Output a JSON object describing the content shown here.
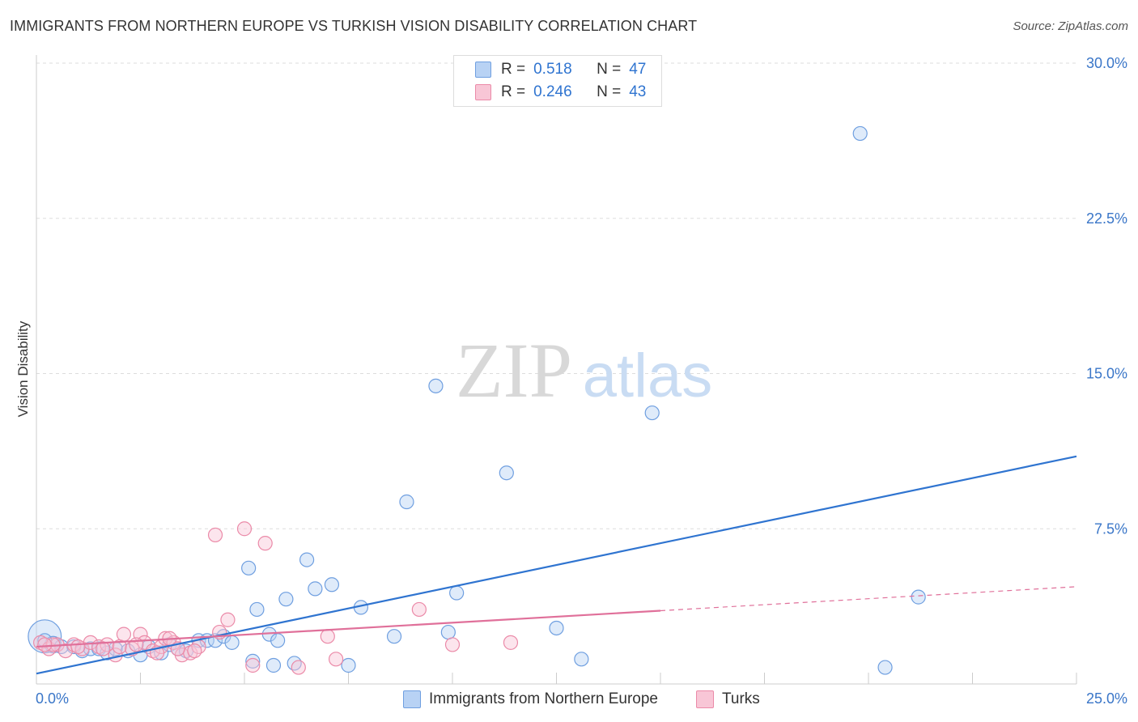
{
  "title": "IMMIGRANTS FROM NORTHERN EUROPE VS TURKISH VISION DISABILITY CORRELATION CHART",
  "source": "Source: ZipAtlas.com",
  "watermark": {
    "zip": "ZIP",
    "atlas": "atlas"
  },
  "legend": {
    "r_label": "R =",
    "n_label": "N =",
    "series": [
      {
        "r": "0.518",
        "n": "47"
      },
      {
        "r": "0.246",
        "n": "43"
      }
    ]
  },
  "chart_data": {
    "type": "scatter",
    "ylabel": "Vision Disability",
    "xlabel": "",
    "xlim": [
      0,
      25
    ],
    "ylim": [
      0,
      30
    ],
    "x_tick_labels": [
      {
        "value": 0,
        "label": "0.0%"
      },
      {
        "value": 25,
        "label": "25.0%"
      }
    ],
    "y_tick_labels": [
      {
        "value": 7.5,
        "label": "7.5%"
      },
      {
        "value": 15,
        "label": "15.0%"
      },
      {
        "value": 22.5,
        "label": "22.5%"
      },
      {
        "value": 30,
        "label": "30.0%"
      }
    ],
    "series": [
      {
        "name": "Immigrants from Northern Europe",
        "color": "#6f9fe0",
        "fill": "#b8d2f4",
        "line_color": "#2f74d0",
        "trend": {
          "x0": 0,
          "y0": 0.5,
          "x1": 25,
          "y1": 11.0,
          "dashed_from": null
        },
        "points": [
          [
            0.2,
            2.3
          ],
          [
            0.4,
            1.9
          ],
          [
            0.6,
            1.8
          ],
          [
            0.9,
            1.8
          ],
          [
            1.1,
            1.6
          ],
          [
            1.3,
            1.7
          ],
          [
            1.5,
            1.7
          ],
          [
            1.7,
            1.5
          ],
          [
            1.9,
            1.7
          ],
          [
            2.2,
            1.6
          ],
          [
            2.5,
            1.4
          ],
          [
            2.7,
            1.8
          ],
          [
            3.0,
            1.5
          ],
          [
            3.2,
            1.9
          ],
          [
            3.4,
            1.7
          ],
          [
            3.6,
            1.6
          ],
          [
            3.9,
            2.1
          ],
          [
            4.1,
            2.1
          ],
          [
            4.3,
            2.1
          ],
          [
            4.5,
            2.3
          ],
          [
            4.7,
            2.0
          ],
          [
            5.1,
            5.6
          ],
          [
            5.2,
            1.1
          ],
          [
            5.3,
            3.6
          ],
          [
            5.6,
            2.4
          ],
          [
            5.7,
            0.9
          ],
          [
            5.8,
            2.1
          ],
          [
            6.0,
            4.1
          ],
          [
            6.2,
            1.0
          ],
          [
            6.5,
            6.0
          ],
          [
            6.7,
            4.6
          ],
          [
            7.1,
            4.8
          ],
          [
            7.5,
            0.9
          ],
          [
            7.8,
            3.7
          ],
          [
            8.6,
            2.3
          ],
          [
            8.9,
            8.8
          ],
          [
            9.6,
            14.4
          ],
          [
            9.9,
            2.5
          ],
          [
            10.1,
            4.4
          ],
          [
            11.3,
            10.2
          ],
          [
            12.5,
            2.7
          ],
          [
            13.1,
            1.2
          ],
          [
            14.8,
            13.1
          ],
          [
            19.8,
            26.6
          ],
          [
            20.4,
            0.8
          ],
          [
            21.2,
            4.2
          ],
          [
            0.2,
            2.1
          ]
        ],
        "point_sizes": [
          24,
          12,
          10,
          10,
          10,
          10,
          10,
          10,
          10,
          10,
          10,
          10,
          10,
          10,
          10,
          10,
          10,
          10,
          10,
          10,
          10,
          10,
          10,
          10,
          10,
          10,
          10,
          10,
          10,
          10,
          10,
          10,
          10,
          10,
          10,
          10,
          10,
          10,
          10,
          10,
          10,
          10,
          10,
          10,
          10,
          10,
          10
        ]
      },
      {
        "name": "Turks",
        "color": "#eb8aa8",
        "fill": "#f8c6d6",
        "line_color": "#e0709a",
        "trend": {
          "x0": 0,
          "y0": 1.8,
          "x1": 25,
          "y1": 4.7,
          "dashed_from": 15
        },
        "points": [
          [
            0.1,
            2.0
          ],
          [
            0.3,
            1.7
          ],
          [
            0.5,
            1.9
          ],
          [
            0.7,
            1.6
          ],
          [
            0.9,
            1.9
          ],
          [
            1.1,
            1.7
          ],
          [
            1.3,
            2.0
          ],
          [
            1.5,
            1.8
          ],
          [
            1.7,
            1.9
          ],
          [
            1.9,
            1.4
          ],
          [
            2.0,
            1.8
          ],
          [
            2.1,
            2.4
          ],
          [
            2.3,
            1.7
          ],
          [
            2.5,
            2.4
          ],
          [
            2.6,
            2.0
          ],
          [
            2.8,
            1.6
          ],
          [
            3.0,
            1.8
          ],
          [
            3.1,
            2.2
          ],
          [
            3.3,
            2.0
          ],
          [
            3.5,
            1.4
          ],
          [
            3.7,
            1.5
          ],
          [
            3.9,
            1.8
          ],
          [
            4.3,
            7.2
          ],
          [
            4.4,
            2.5
          ],
          [
            4.6,
            3.1
          ],
          [
            5.0,
            7.5
          ],
          [
            5.2,
            0.9
          ],
          [
            5.5,
            6.8
          ],
          [
            6.3,
            0.8
          ],
          [
            7.0,
            2.3
          ],
          [
            7.2,
            1.2
          ],
          [
            9.2,
            3.6
          ],
          [
            10.0,
            1.9
          ],
          [
            11.4,
            2.0
          ],
          [
            0.4,
            1.9
          ],
          [
            1.0,
            1.8
          ],
          [
            1.6,
            1.7
          ],
          [
            2.4,
            1.9
          ],
          [
            2.9,
            1.5
          ],
          [
            3.4,
            1.7
          ],
          [
            3.8,
            1.6
          ],
          [
            0.2,
            1.9
          ],
          [
            3.2,
            2.2
          ]
        ],
        "point_sizes": [
          10,
          10,
          10,
          10,
          10,
          10,
          10,
          10,
          10,
          10,
          10,
          10,
          10,
          10,
          10,
          10,
          10,
          10,
          10,
          10,
          10,
          10,
          10,
          10,
          10,
          10,
          10,
          10,
          10,
          10,
          10,
          10,
          10,
          10,
          10,
          10,
          10,
          10,
          10,
          10,
          10,
          10,
          10
        ]
      }
    ],
    "grid": true,
    "legend_position": "top-center"
  }
}
